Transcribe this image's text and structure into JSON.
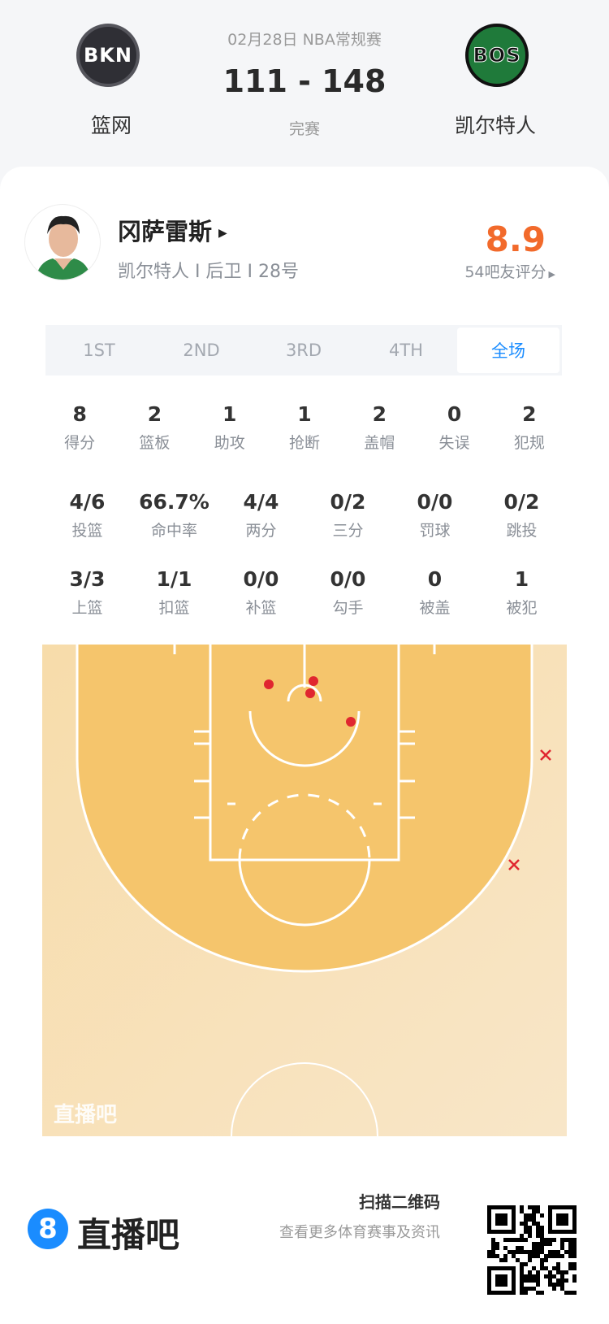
{
  "match": {
    "date_league": "02月28日 NBA常规赛",
    "score": "111 - 148",
    "status": "完赛",
    "home": {
      "abbr": "BKN",
      "name": "篮网",
      "color": "#2f2f35"
    },
    "away": {
      "abbr": "BOS",
      "name": "凯尔特人",
      "color": "#1f7a3a"
    }
  },
  "player": {
    "name": "冈萨雷斯",
    "meta": "凯尔特人 I 后卫 I 28号",
    "rating": "8.9",
    "rating_label": "54吧友评分",
    "rating_color": "#f26a2b"
  },
  "tabs": [
    {
      "label": "1ST"
    },
    {
      "label": "2ND"
    },
    {
      "label": "3RD"
    },
    {
      "label": "4TH"
    },
    {
      "label": "全场",
      "active": true
    }
  ],
  "stats_row1": [
    {
      "v": "8",
      "l": "得分"
    },
    {
      "v": "2",
      "l": "篮板"
    },
    {
      "v": "1",
      "l": "助攻"
    },
    {
      "v": "1",
      "l": "抢断"
    },
    {
      "v": "2",
      "l": "盖帽"
    },
    {
      "v": "0",
      "l": "失误"
    },
    {
      "v": "2",
      "l": "犯规"
    }
  ],
  "stats_row2": [
    {
      "v": "4/6",
      "l": "投篮"
    },
    {
      "v": "66.7%",
      "l": "命中率"
    },
    {
      "v": "4/4",
      "l": "两分"
    },
    {
      "v": "0/2",
      "l": "三分"
    },
    {
      "v": "0/0",
      "l": "罚球"
    },
    {
      "v": "0/2",
      "l": "跳投"
    }
  ],
  "stats_row3": [
    {
      "v": "3/3",
      "l": "上篮"
    },
    {
      "v": "1/1",
      "l": "扣篮"
    },
    {
      "v": "0/0",
      "l": "补篮"
    },
    {
      "v": "0/0",
      "l": "勾手"
    },
    {
      "v": "0",
      "l": "被盖"
    },
    {
      "v": "1",
      "l": "被犯"
    }
  ],
  "shot_chart": {
    "watermark": "直播吧",
    "shots": [
      "made",
      "made",
      "made",
      "made",
      "missed",
      "missed"
    ],
    "made_color": "#e0262f",
    "missed_color": "#e0262f"
  },
  "footer": {
    "brand": "直播吧",
    "brand_icon": "8",
    "scan_title": "扫描二维码",
    "scan_sub": "查看更多体育赛事及资讯",
    "accent": "#1a8cff"
  }
}
